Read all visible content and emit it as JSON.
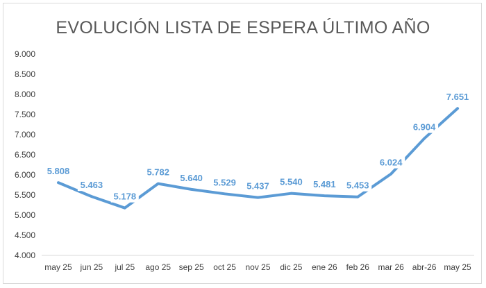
{
  "chart_data": {
    "type": "line",
    "title": "EVOLUCIÓN LISTA DE ESPERA ÚLTIMO AÑO",
    "xlabel": "",
    "ylabel": "",
    "categories": [
      "may 25",
      "jun 25",
      "jul 25",
      "ago 25",
      "sep 25",
      "oct 25",
      "nov 25",
      "dic 25",
      "ene 26",
      "feb 26",
      "mar 26",
      "abr-26",
      "may 25"
    ],
    "series": [
      {
        "values": [
          5808,
          5463,
          5178,
          5782,
          5640,
          5529,
          5437,
          5540,
          5481,
          5453,
          6024,
          6904,
          7651
        ],
        "labels": [
          "5.808",
          "5.463",
          "5.178",
          "5.782",
          "5.640",
          "5.529",
          "5.437",
          "5.540",
          "5.481",
          "5.453",
          "6.024",
          "6.904",
          "7.651"
        ],
        "color": "#5b9bd5"
      }
    ],
    "ylim": [
      4000,
      9000
    ],
    "yticks": [
      4000,
      4500,
      5000,
      5500,
      6000,
      6500,
      7000,
      7500,
      8000,
      8500,
      9000
    ],
    "ytick_labels": [
      "4.000",
      "4.500",
      "5.000",
      "5.500",
      "6.000",
      "6.500",
      "7.000",
      "7.500",
      "8.000",
      "8.500",
      "9.000"
    ],
    "grid": false,
    "legend": "none",
    "colors": {
      "line": "#5b9bd5",
      "text": "#595959",
      "axis": "#d9d9d9"
    }
  }
}
